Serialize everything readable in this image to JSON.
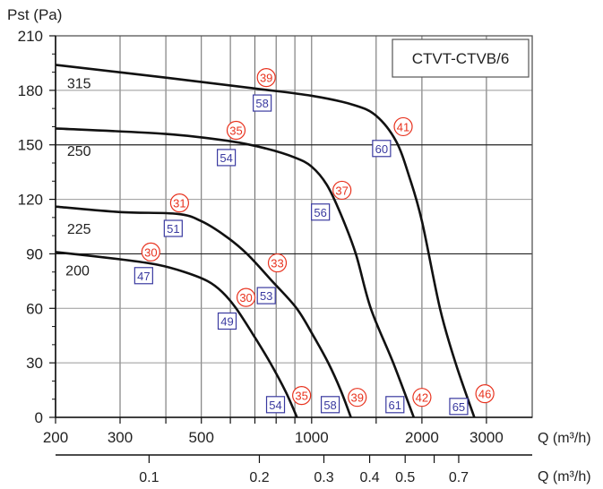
{
  "chart_data": {
    "type": "line",
    "title": "CTVT-CTVB/6",
    "legend_placement": "top-right",
    "ylabel": "Pst (Pa)",
    "xlabel": "Q (m³/h)",
    "x2label": "Q (m³/h)",
    "xscale": "log",
    "xlim": [
      200,
      4000
    ],
    "ylim": [
      0,
      210
    ],
    "grid": true,
    "xgrid": [
      300,
      400,
      500,
      600,
      700,
      800,
      900,
      1000,
      1500,
      2000,
      3000
    ],
    "xticks": [
      200,
      300,
      400,
      500,
      600,
      700,
      800,
      900,
      1000,
      1500,
      2000,
      3000
    ],
    "xticklabels": [
      {
        "value": 200,
        "label": "200"
      },
      {
        "value": 300,
        "label": "300"
      },
      {
        "value": 500,
        "label": "500"
      },
      {
        "value": 1000,
        "label": "1000"
      },
      {
        "value": 2000,
        "label": "2000"
      },
      {
        "value": 3000,
        "label": "3000"
      }
    ],
    "x2ticks": [
      {
        "value": 0.1,
        "label": "0.1"
      },
      {
        "value": 0.2,
        "label": "0.2"
      },
      {
        "value": 0.3,
        "label": "0.3"
      },
      {
        "value": 0.4,
        "label": "0.4"
      },
      {
        "value": 0.5,
        "label": "0.5"
      },
      {
        "value": 0.6,
        "label": ""
      },
      {
        "value": 0.7,
        "label": "0.7"
      }
    ],
    "yticks": [
      0,
      30,
      60,
      90,
      120,
      150,
      180,
      210
    ],
    "ytick_labels": [
      "0",
      "30",
      "60",
      "90",
      "120",
      "150",
      "180",
      "210"
    ],
    "strong_gridlines": [
      90,
      150
    ],
    "colors": {
      "curve": "#111111",
      "grid": "#888888",
      "circle": "#e8321e",
      "square": "#3a3aa0"
    },
    "series": [
      {
        "name": "315",
        "label_at": [
          215,
          184
        ],
        "points": [
          [
            200,
            194
          ],
          [
            400,
            187
          ],
          [
            700,
            181
          ],
          [
            1000,
            177
          ],
          [
            1300,
            172
          ],
          [
            1500,
            166
          ],
          [
            1700,
            152
          ],
          [
            1850,
            132
          ],
          [
            2000,
            108
          ],
          [
            2240,
            60
          ],
          [
            2470,
            30
          ],
          [
            2780,
            0
          ]
        ]
      },
      {
        "name": "250",
        "label_at": [
          215,
          147
        ],
        "points": [
          [
            200,
            159
          ],
          [
            400,
            156
          ],
          [
            600,
            152
          ],
          [
            750,
            148
          ],
          [
            900,
            143
          ],
          [
            1000,
            138
          ],
          [
            1100,
            128
          ],
          [
            1200,
            112
          ],
          [
            1320,
            90
          ],
          [
            1450,
            60
          ],
          [
            1670,
            30
          ],
          [
            1900,
            0
          ]
        ]
      },
      {
        "name": "225",
        "label_at": [
          215,
          104
        ],
        "points": [
          [
            200,
            116
          ],
          [
            300,
            113
          ],
          [
            430,
            112
          ],
          [
            500,
            108
          ],
          [
            580,
            100
          ],
          [
            666,
            90
          ],
          [
            780,
            75
          ],
          [
            910,
            60
          ],
          [
            1010,
            45
          ],
          [
            1110,
            30
          ],
          [
            1200,
            15
          ],
          [
            1280,
            0
          ]
        ]
      },
      {
        "name": "200",
        "label_at": [
          213,
          81
        ],
        "points": [
          [
            200,
            91
          ],
          [
            300,
            87
          ],
          [
            380,
            84
          ],
          [
            450,
            80
          ],
          [
            520,
            75
          ],
          [
            570,
            69
          ],
          [
            622,
            60
          ],
          [
            700,
            44
          ],
          [
            771,
            30
          ],
          [
            850,
            14
          ],
          [
            912,
            0
          ]
        ]
      }
    ],
    "circle_labels": [
      {
        "text": "39",
        "q": 752,
        "p": 187
      },
      {
        "text": "35",
        "q": 622,
        "p": 158
      },
      {
        "text": "31",
        "q": 436,
        "p": 118
      },
      {
        "text": "30",
        "q": 364,
        "p": 91
      },
      {
        "text": "33",
        "q": 806,
        "p": 85
      },
      {
        "text": "30",
        "q": 662,
        "p": 66
      },
      {
        "text": "37",
        "q": 1210,
        "p": 125
      },
      {
        "text": "41",
        "q": 1778,
        "p": 160
      },
      {
        "text": "35",
        "q": 939,
        "p": 12
      },
      {
        "text": "39",
        "q": 1332,
        "p": 11
      },
      {
        "text": "42",
        "q": 2000,
        "p": 11
      },
      {
        "text": "46",
        "q": 2970,
        "p": 13
      }
    ],
    "square_labels": [
      {
        "text": "58",
        "q": 733,
        "p": 173
      },
      {
        "text": "54",
        "q": 585,
        "p": 143
      },
      {
        "text": "51",
        "q": 419,
        "p": 104
      },
      {
        "text": "47",
        "q": 348,
        "p": 78
      },
      {
        "text": "53",
        "q": 752,
        "p": 67
      },
      {
        "text": "49",
        "q": 588,
        "p": 53
      },
      {
        "text": "56",
        "q": 1057,
        "p": 113
      },
      {
        "text": "60",
        "q": 1552,
        "p": 148
      },
      {
        "text": "54",
        "q": 797,
        "p": 7
      },
      {
        "text": "58",
        "q": 1124,
        "p": 7
      },
      {
        "text": "61",
        "q": 1688,
        "p": 7
      },
      {
        "text": "65",
        "q": 2520,
        "p": 6
      }
    ]
  }
}
